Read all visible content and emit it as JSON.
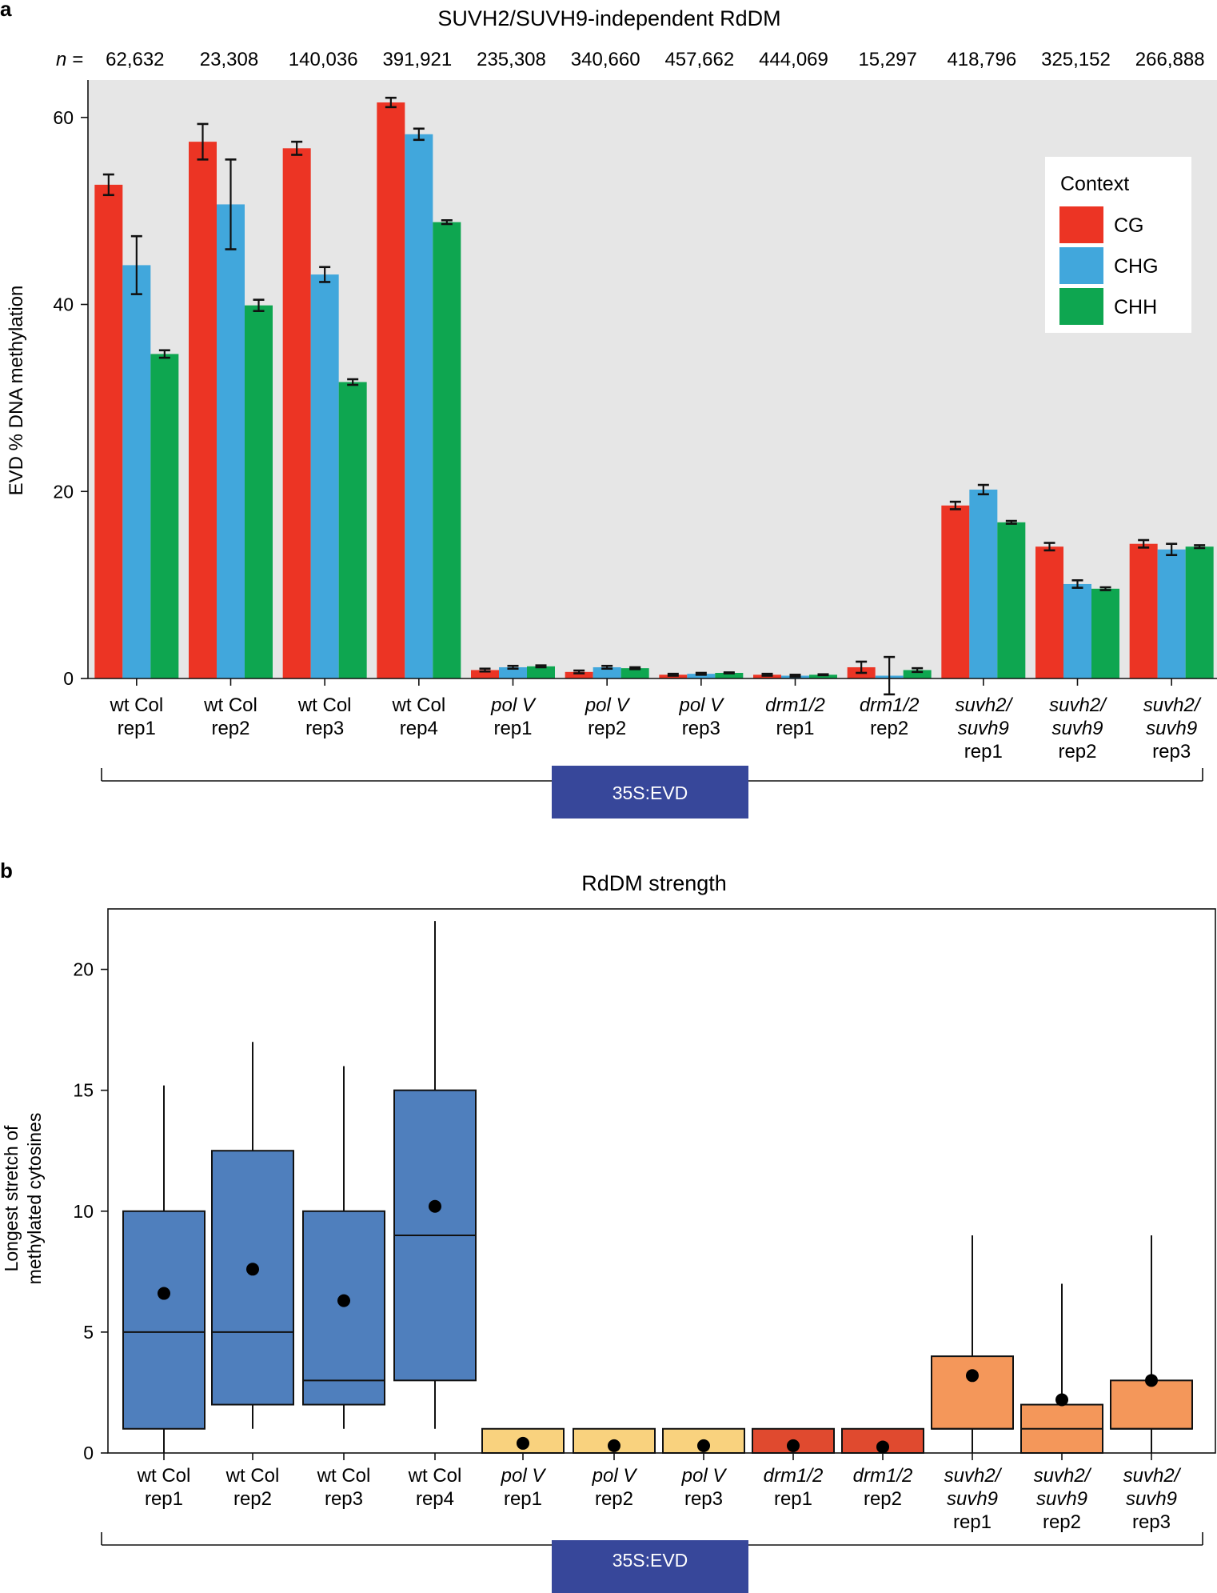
{
  "chart_data": [
    {
      "panel_letter": "a",
      "type": "bar",
      "title": "SUVH2/SUVH9-independent RdDM",
      "n_prefix": "n =",
      "n_values": [
        "62,632",
        "23,308",
        "140,036",
        "391,921",
        "235,308",
        "340,660",
        "457,662",
        "444,069",
        "15,297",
        "418,796",
        "325,152",
        "266,888"
      ],
      "categories": [
        {
          "lines": [
            "wt Col",
            "rep1"
          ],
          "italic": [
            false,
            false
          ]
        },
        {
          "lines": [
            "wt Col",
            "rep2"
          ],
          "italic": [
            false,
            false
          ]
        },
        {
          "lines": [
            "wt Col",
            "rep3"
          ],
          "italic": [
            false,
            false
          ]
        },
        {
          "lines": [
            "wt Col",
            "rep4"
          ],
          "italic": [
            false,
            false
          ]
        },
        {
          "lines": [
            "pol V",
            "rep1"
          ],
          "italic": [
            true,
            false
          ]
        },
        {
          "lines": [
            "pol V",
            "rep2"
          ],
          "italic": [
            true,
            false
          ]
        },
        {
          "lines": [
            "pol V",
            "rep3"
          ],
          "italic": [
            true,
            false
          ]
        },
        {
          "lines": [
            "drm1/2",
            "rep1"
          ],
          "italic": [
            true,
            false
          ]
        },
        {
          "lines": [
            "drm1/2",
            "rep2"
          ],
          "italic": [
            true,
            false
          ]
        },
        {
          "lines": [
            "suvh2/",
            "suvh9",
            "rep1"
          ],
          "italic": [
            true,
            true,
            false
          ]
        },
        {
          "lines": [
            "suvh2/",
            "suvh9",
            "rep2"
          ],
          "italic": [
            true,
            true,
            false
          ]
        },
        {
          "lines": [
            "suvh2/",
            "suvh9",
            "rep3"
          ],
          "italic": [
            true,
            true,
            false
          ]
        }
      ],
      "ylabel": "EVD % DNA methylation",
      "ylim": [
        0,
        64
      ],
      "yticks": [
        0,
        20,
        40,
        60
      ],
      "grid": false,
      "background": "#e6e6e6",
      "legend": {
        "title": "Context",
        "position": "top-right"
      },
      "series": [
        {
          "name": "CG",
          "color": "#ec3424",
          "values": [
            52.8,
            57.4,
            56.7,
            61.6,
            0.9,
            0.7,
            0.4,
            0.4,
            1.2,
            18.5,
            14.1,
            14.4
          ],
          "errors": [
            1.1,
            1.9,
            0.7,
            0.5,
            0.15,
            0.15,
            0.1,
            0.1,
            0.6,
            0.4,
            0.4,
            0.4
          ]
        },
        {
          "name": "CHG",
          "color": "#41a7dc",
          "values": [
            44.2,
            50.7,
            43.2,
            58.2,
            1.2,
            1.2,
            0.5,
            0.3,
            0.3,
            20.2,
            10.1,
            13.8
          ],
          "errors": [
            3.1,
            4.8,
            0.8,
            0.6,
            0.15,
            0.15,
            0.1,
            0.1,
            2.0,
            0.5,
            0.4,
            0.6
          ]
        },
        {
          "name": "CHH",
          "color": "#0ea650",
          "values": [
            34.7,
            39.9,
            31.7,
            48.8,
            1.3,
            1.1,
            0.6,
            0.4,
            0.9,
            16.7,
            9.6,
            14.1
          ],
          "errors": [
            0.4,
            0.6,
            0.3,
            0.2,
            0.1,
            0.1,
            0.05,
            0.05,
            0.2,
            0.15,
            0.15,
            0.15
          ]
        }
      ],
      "bracket_label": "35S:EVD"
    },
    {
      "panel_letter": "b",
      "type": "box",
      "title": "RdDM strength",
      "categories": [
        {
          "lines": [
            "wt Col",
            "rep1"
          ],
          "italic": [
            false,
            false
          ]
        },
        {
          "lines": [
            "wt Col",
            "rep2"
          ],
          "italic": [
            false,
            false
          ]
        },
        {
          "lines": [
            "wt Col",
            "rep3"
          ],
          "italic": [
            false,
            false
          ]
        },
        {
          "lines": [
            "wt Col",
            "rep4"
          ],
          "italic": [
            false,
            false
          ]
        },
        {
          "lines": [
            "pol V",
            "rep1"
          ],
          "italic": [
            true,
            false
          ]
        },
        {
          "lines": [
            "pol V",
            "rep2"
          ],
          "italic": [
            true,
            false
          ]
        },
        {
          "lines": [
            "pol V",
            "rep3"
          ],
          "italic": [
            true,
            false
          ]
        },
        {
          "lines": [
            "drm1/2",
            "rep1"
          ],
          "italic": [
            true,
            false
          ]
        },
        {
          "lines": [
            "drm1/2",
            "rep2"
          ],
          "italic": [
            true,
            false
          ]
        },
        {
          "lines": [
            "suvh2/",
            "suvh9",
            "rep1"
          ],
          "italic": [
            true,
            true,
            false
          ]
        },
        {
          "lines": [
            "suvh2/",
            "suvh9",
            "rep2"
          ],
          "italic": [
            true,
            true,
            false
          ]
        },
        {
          "lines": [
            "suvh2/",
            "suvh9",
            "rep3"
          ],
          "italic": [
            true,
            true,
            false
          ]
        }
      ],
      "ylabel": [
        "Longest stretch of",
        "methylated cytosines"
      ],
      "ylim": [
        0,
        22.5
      ],
      "yticks": [
        0,
        5,
        10,
        15,
        20
      ],
      "grid": false,
      "boxes": [
        {
          "min": 0,
          "q1": 1,
          "median": 5,
          "q3": 10,
          "max": 15.2,
          "mean": 6.6,
          "color": "#4f7fbd"
        },
        {
          "min": 1,
          "q1": 2,
          "median": 5,
          "q3": 12.5,
          "max": 17,
          "mean": 7.6,
          "color": "#4f7fbd"
        },
        {
          "min": 1,
          "q1": 2,
          "median": 3,
          "q3": 10,
          "max": 16,
          "mean": 6.3,
          "color": "#4f7fbd"
        },
        {
          "min": 1,
          "q1": 3,
          "median": 9,
          "q3": 15,
          "max": 22,
          "mean": 10.2,
          "color": "#4f7fbd"
        },
        {
          "min": 0,
          "q1": 0,
          "median": 0,
          "q3": 1,
          "max": 1,
          "mean": 0.4,
          "color": "#f9d27e"
        },
        {
          "min": 0,
          "q1": 0,
          "median": 0,
          "q3": 1,
          "max": 1,
          "mean": 0.3,
          "color": "#f9d27e"
        },
        {
          "min": 0,
          "q1": 0,
          "median": 0,
          "q3": 1,
          "max": 1,
          "mean": 0.3,
          "color": "#f9d27e"
        },
        {
          "min": 0,
          "q1": 0,
          "median": 0,
          "q3": 1,
          "max": 1,
          "mean": 0.3,
          "color": "#e04a2f"
        },
        {
          "min": 0,
          "q1": 0,
          "median": 0,
          "q3": 1,
          "max": 1,
          "mean": 0.25,
          "color": "#e04a2f"
        },
        {
          "min": 0,
          "q1": 1,
          "median": 1,
          "q3": 4,
          "max": 9,
          "mean": 3.2,
          "color": "#f4975a"
        },
        {
          "min": 0,
          "q1": 0,
          "median": 1,
          "q3": 2,
          "max": 7,
          "mean": 2.2,
          "color": "#f4975a"
        },
        {
          "min": 0,
          "q1": 1,
          "median": 1,
          "q3": 3,
          "max": 9,
          "mean": 3.0,
          "color": "#f4975a"
        }
      ],
      "bracket_label": "35S:EVD"
    }
  ],
  "colors": {
    "bracket_box": "#37479a",
    "bracket_text": "#ffffff"
  }
}
